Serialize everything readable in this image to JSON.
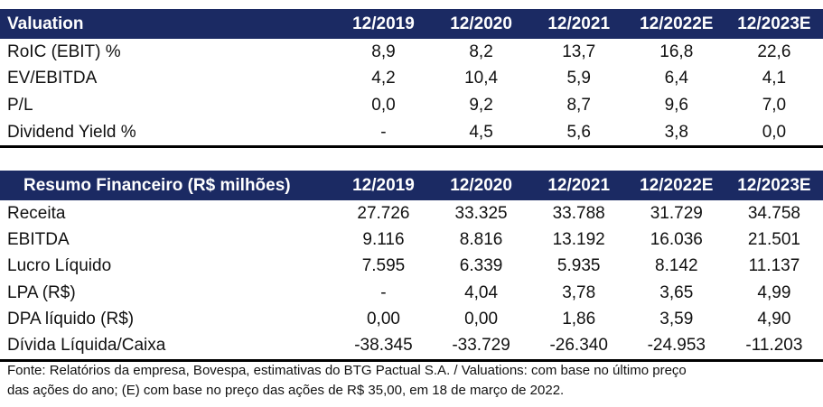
{
  "valuation": {
    "title": "Valuation",
    "years": [
      "12/2019",
      "12/2020",
      "12/2021",
      "12/2022E",
      "12/2023E"
    ],
    "rows": [
      {
        "label": "RoIC (EBIT) %",
        "values": [
          "8,9",
          "8,2",
          "13,7",
          "16,8",
          "22,6"
        ]
      },
      {
        "label": "EV/EBITDA",
        "values": [
          "4,2",
          "10,4",
          "5,9",
          "6,4",
          "4,1"
        ]
      },
      {
        "label": "P/L",
        "values": [
          "0,0",
          "9,2",
          "8,7",
          "9,6",
          "7,0"
        ]
      },
      {
        "label": "Dividend Yield %",
        "values": [
          "-",
          "4,5",
          "5,6",
          "3,8",
          "0,0"
        ]
      }
    ]
  },
  "resumo": {
    "title": "Resumo Financeiro (R$ milhões)",
    "years": [
      "12/2019",
      "12/2020",
      "12/2021",
      "12/2022E",
      "12/2023E"
    ],
    "rows": [
      {
        "label": "Receita",
        "values": [
          "27.726",
          "33.325",
          "33.788",
          "31.729",
          "34.758"
        ]
      },
      {
        "label": "EBITDA",
        "values": [
          "9.116",
          "8.816",
          "13.192",
          "16.036",
          "21.501"
        ]
      },
      {
        "label": "Lucro Líquido",
        "values": [
          "7.595",
          "6.339",
          "5.935",
          "8.142",
          "11.137"
        ]
      },
      {
        "label": "LPA (R$)",
        "values": [
          "-",
          "4,04",
          "3,78",
          "3,65",
          "4,99"
        ]
      },
      {
        "label": "DPA líquido (R$)",
        "values": [
          "0,00",
          "0,00",
          "1,86",
          "3,59",
          "4,90"
        ]
      },
      {
        "label": "Dívida Líquida/Caixa",
        "values": [
          "-38.345",
          "-33.729",
          "-26.340",
          "-24.953",
          "-11.203"
        ]
      }
    ]
  },
  "footnote": {
    "line1": "Fonte: Relatórios da empresa, Bovespa, estimativas do BTG Pactual S.A. / Valuations: com base no último preço",
    "line2": "das ações do ano; (E) com base no preço das ações de R$ 35,00, em 18 de março de 2022."
  }
}
